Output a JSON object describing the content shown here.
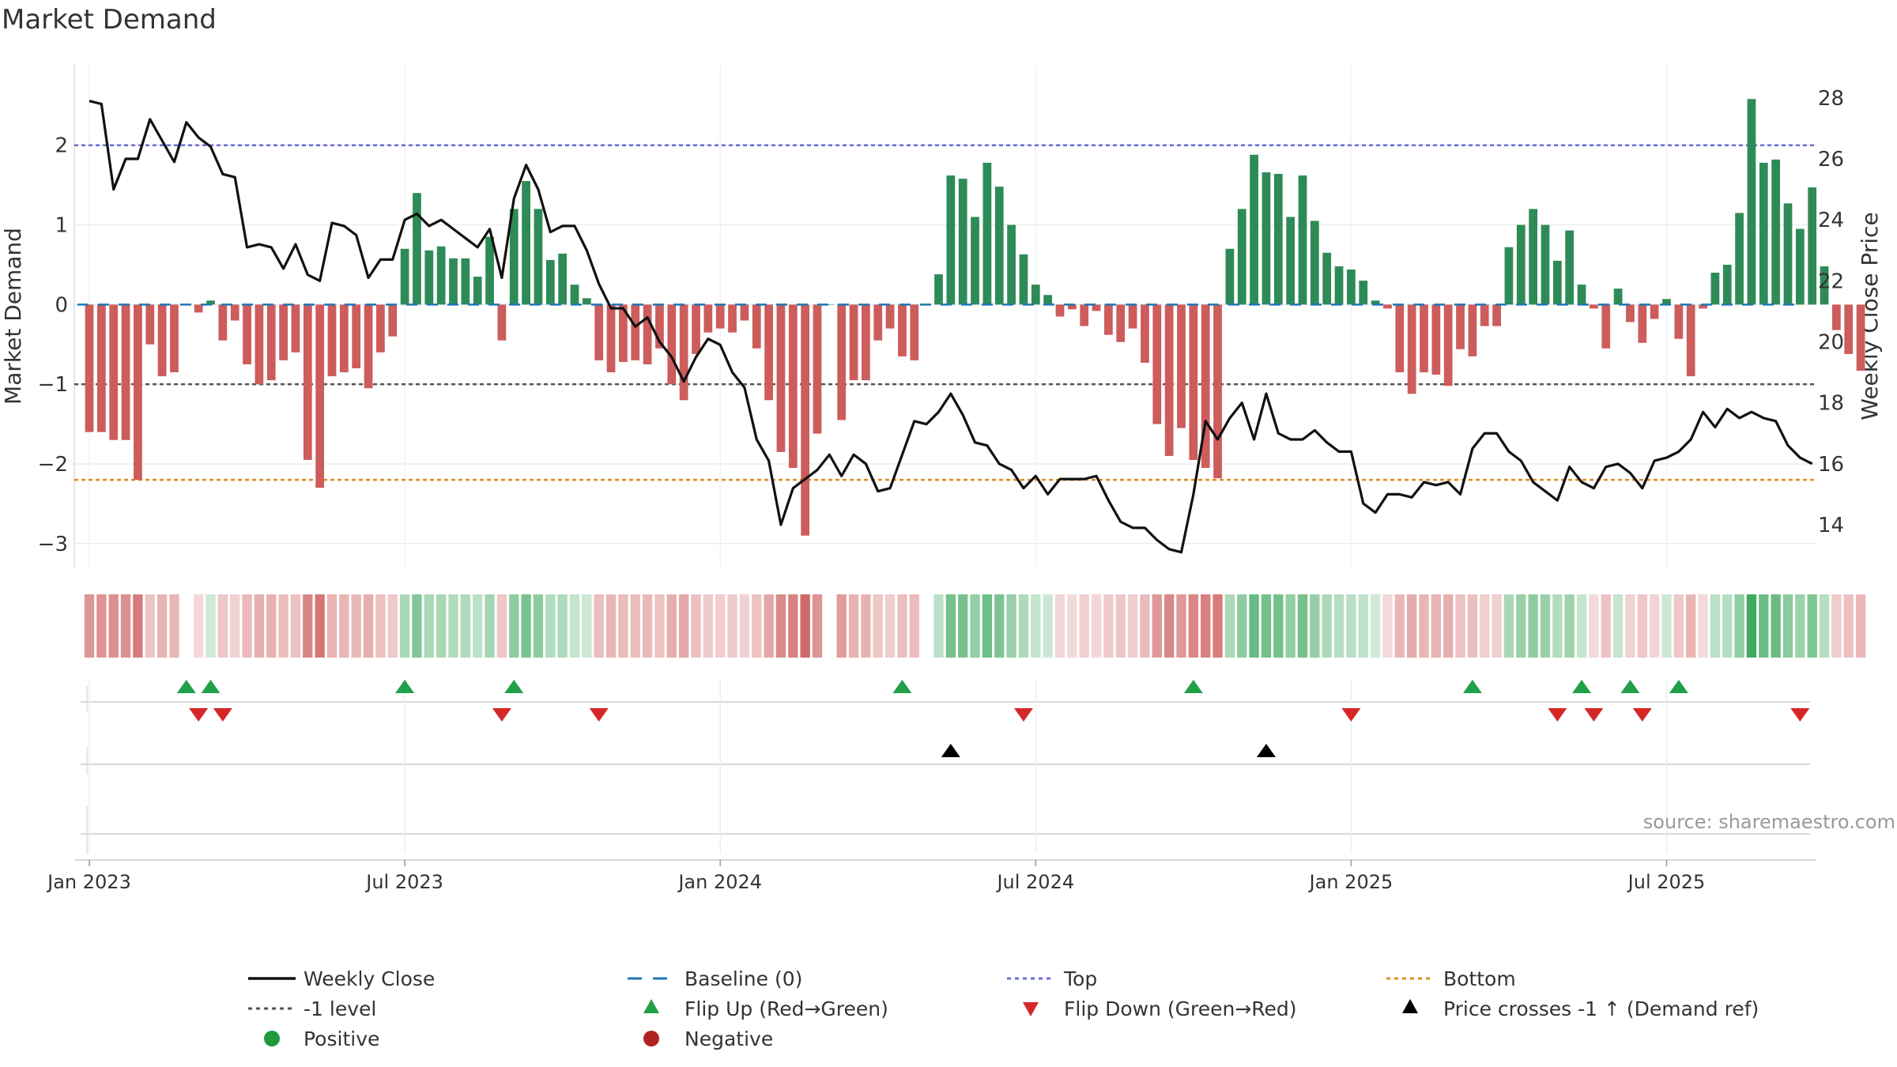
{
  "chart_data": {
    "type": "bar",
    "title": "Market Demand",
    "ylabel": "Market Demand",
    "y2label": "Weekly Close Price",
    "ylim": [
      -3.3,
      2.9
    ],
    "y2lim": [
      12.6,
      28.8
    ],
    "yticks": [
      2,
      1,
      0,
      -1,
      -2,
      -3
    ],
    "ytick_labels": [
      "2",
      "1",
      "0",
      "−1",
      "−2",
      "−3"
    ],
    "y2ticks": [
      28,
      26,
      24,
      22,
      20,
      18,
      16,
      14
    ],
    "y2tick_labels": [
      "28",
      "26",
      "24",
      "22",
      "20",
      "18",
      "16",
      "14"
    ],
    "reference_lines": {
      "top": 2.0,
      "minus_one": -1.0,
      "bottom": -2.2,
      "baseline": 0
    },
    "xticks": [
      0,
      26,
      52,
      78,
      104,
      130
    ],
    "xtick_labels": [
      "Jan 2023",
      "Jul 2023",
      "Jan 2024",
      "Jul 2024",
      "Jan 2025",
      "Jul 2025"
    ],
    "demand": [
      -1.6,
      -1.6,
      -1.7,
      -1.7,
      -2.2,
      -0.5,
      -0.9,
      -0.85,
      0,
      -0.1,
      0.05,
      -0.45,
      -0.2,
      -0.75,
      -1.0,
      -0.95,
      -0.7,
      -0.6,
      -1.95,
      -2.3,
      -0.9,
      -0.85,
      -0.8,
      -1.05,
      -0.6,
      -0.4,
      0.7,
      1.4,
      0.68,
      0.73,
      0.58,
      0.58,
      0.35,
      0.85,
      -0.45,
      1.2,
      1.55,
      1.2,
      0.56,
      0.64,
      0.25,
      0.08,
      -0.7,
      -0.85,
      -0.72,
      -0.7,
      -0.75,
      -0.55,
      -1.0,
      -1.2,
      -0.62,
      -0.35,
      -0.3,
      -0.35,
      -0.2,
      -0.55,
      -1.2,
      -1.85,
      -2.05,
      -2.9,
      -1.62,
      0,
      -1.45,
      -0.95,
      -0.95,
      -0.45,
      -0.3,
      -0.65,
      -0.7,
      0,
      0.38,
      1.62,
      1.58,
      1.1,
      1.78,
      1.48,
      1.0,
      0.63,
      0.25,
      0.12,
      -0.15,
      -0.06,
      -0.27,
      -0.08,
      -0.38,
      -0.47,
      -0.3,
      -0.73,
      -1.5,
      -1.9,
      -1.55,
      -1.95,
      -2.05,
      -2.18,
      0.7,
      1.2,
      1.88,
      1.66,
      1.64,
      1.1,
      1.62,
      1.05,
      0.65,
      0.48,
      0.44,
      0.3,
      0.05,
      -0.05,
      -0.85,
      -1.12,
      -0.85,
      -0.88,
      -1.02,
      -0.56,
      -0.65,
      -0.27,
      -0.27,
      0.72,
      1.0,
      1.2,
      1.0,
      0.55,
      0.93,
      0.25,
      -0.05,
      -0.55,
      0.2,
      -0.22,
      -0.48,
      -0.18,
      0.07,
      -0.43,
      -0.9,
      -0.05,
      0.4,
      0.5,
      1.15,
      2.58,
      1.78,
      1.82,
      1.27,
      0.95,
      1.47,
      0.48,
      -0.32,
      -0.62,
      -0.83
    ],
    "close": [
      27.9,
      27.8,
      25.0,
      26.0,
      26.0,
      27.3,
      26.6,
      25.9,
      27.2,
      26.7,
      26.4,
      25.5,
      25.4,
      23.1,
      23.2,
      23.1,
      22.4,
      23.2,
      22.2,
      22.0,
      23.9,
      23.8,
      23.5,
      22.1,
      22.7,
      22.7,
      24.0,
      24.2,
      23.8,
      24.0,
      23.7,
      23.4,
      23.1,
      23.7,
      22.1,
      24.7,
      25.8,
      25.0,
      23.6,
      23.8,
      23.8,
      23.0,
      21.9,
      21.1,
      21.1,
      20.5,
      20.8,
      20.0,
      19.5,
      18.7,
      19.5,
      20.1,
      19.9,
      19.0,
      18.5,
      16.8,
      16.1,
      14.0,
      15.2,
      15.5,
      15.8,
      16.3,
      15.6,
      16.3,
      16.0,
      15.1,
      15.2,
      16.3,
      17.4,
      17.3,
      17.7,
      18.3,
      17.6,
      16.7,
      16.6,
      16.0,
      15.8,
      15.2,
      15.6,
      15.0,
      15.5,
      15.5,
      15.5,
      15.6,
      14.8,
      14.1,
      13.9,
      13.9,
      13.5,
      13.2,
      13.1,
      15.0,
      17.4,
      16.8,
      17.5,
      18.0,
      16.8,
      18.3,
      17.0,
      16.8,
      16.8,
      17.1,
      16.7,
      16.4,
      16.4,
      14.7,
      14.4,
      15.0,
      15.0,
      14.9,
      15.4,
      15.3,
      15.4,
      15.0,
      16.5,
      17.0,
      17.0,
      16.4,
      16.1,
      15.4,
      15.1,
      14.8,
      15.9,
      15.4,
      15.2,
      15.9,
      16.0,
      15.7,
      15.2,
      16.1,
      16.2,
      16.4,
      16.8,
      17.7,
      17.2,
      17.8,
      17.5,
      17.7,
      17.5,
      17.4,
      16.6,
      16.2,
      16.0
    ],
    "flip_up": [
      8,
      10,
      26,
      35,
      67,
      91,
      114,
      123,
      127,
      131
    ],
    "flip_down": [
      9,
      11,
      34,
      42,
      77,
      104,
      121,
      124,
      128,
      141
    ],
    "price_cross": [
      71,
      97
    ],
    "legend": {
      "weekly_close": "Weekly Close",
      "baseline": "Baseline (0)",
      "top": "Top",
      "bottom": "Bottom",
      "minus_one": "-1 level",
      "flip_up": "Flip Up (Red→Green)",
      "flip_down": "Flip Down (Green→Red)",
      "price_cross": "Price crosses -1 ↑ (Demand ref)",
      "positive": "Positive",
      "negative": "Negative"
    },
    "source": "source: sharemaestro.com"
  },
  "colors": {
    "positive": "#2e8b57",
    "negative": "#cd5c5c",
    "close_line": "#111111",
    "top_line": "#6a6adf",
    "bottom_line": "#e08a1e",
    "minus_one_line": "#555555",
    "baseline": "#1f77b4",
    "flip_up": "#21a04a",
    "flip_down": "#d62728",
    "cross": "#000000",
    "axis_text": "#333333",
    "legend_positive": "#1e9a3a",
    "legend_negative": "#b22222"
  }
}
